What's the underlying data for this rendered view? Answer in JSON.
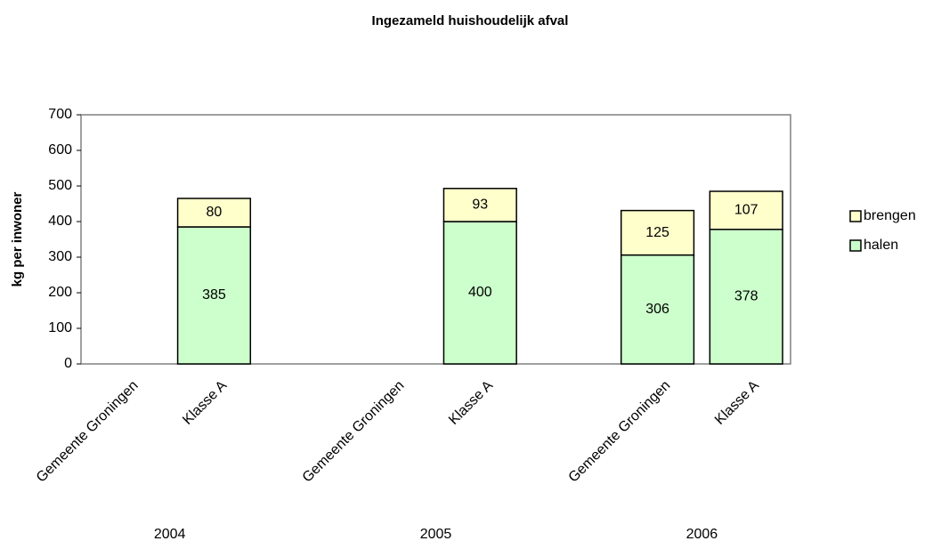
{
  "chart_data": {
    "type": "stacked-bar",
    "title": "Ingezameld huishoudelijk afval",
    "ylabel": "kg per inwoner",
    "categories": [
      "Gemeente Groningen",
      "Klasse A",
      "Gemeente Groningen",
      "Klasse A",
      "Gemeente Groningen",
      "Klasse A"
    ],
    "groups": [
      "2004",
      "2005",
      "2006"
    ],
    "series": [
      {
        "name": "halen",
        "color": "#ccffcc",
        "values": [
          null,
          385,
          null,
          400,
          306,
          378
        ]
      },
      {
        "name": "brengen",
        "color": "#ffffcc",
        "values": [
          null,
          80,
          null,
          93,
          125,
          107
        ]
      }
    ],
    "ylim": [
      0,
      700
    ],
    "yticks": [
      0,
      100,
      200,
      300,
      400,
      500,
      600,
      700
    ],
    "legend": "right"
  }
}
